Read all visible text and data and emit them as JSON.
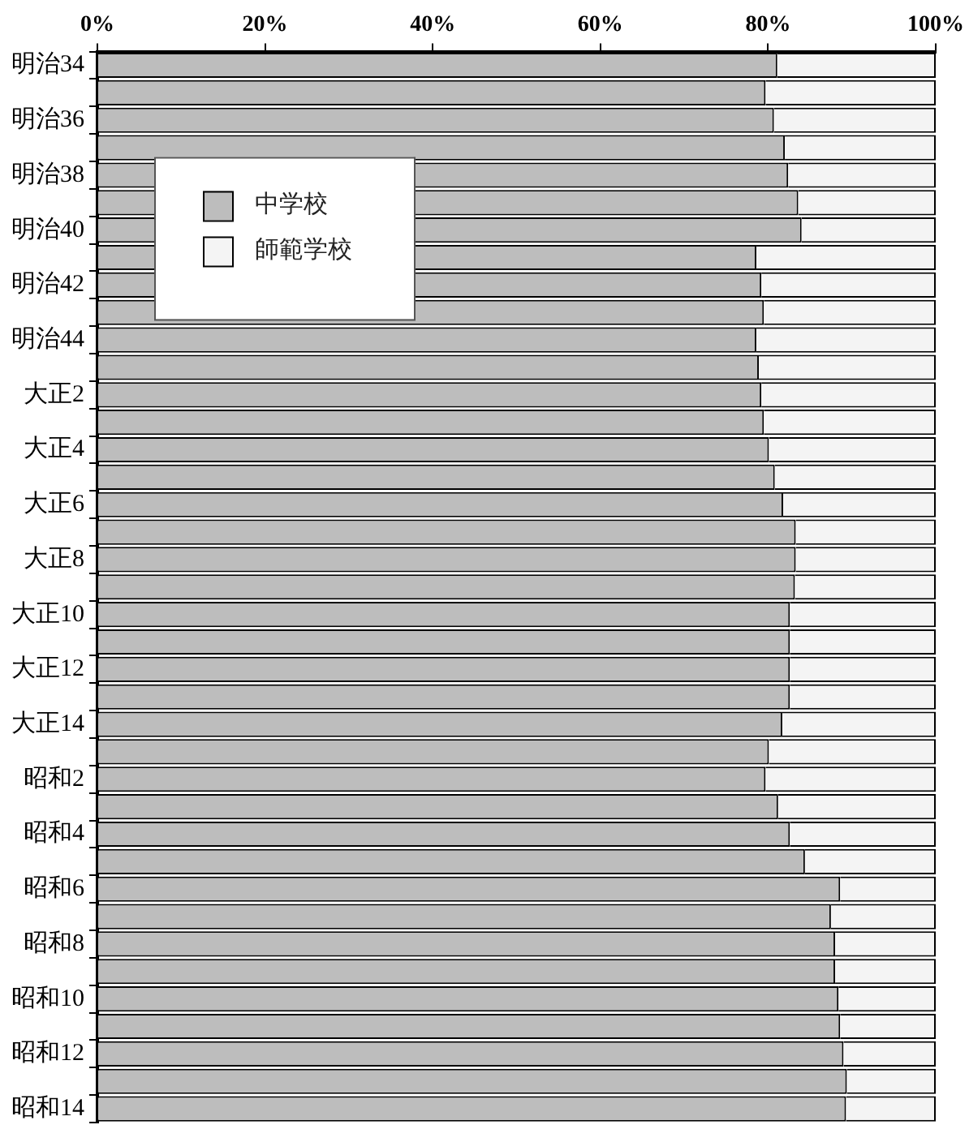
{
  "chart_data": {
    "type": "bar",
    "orientation": "horizontal",
    "stacked": true,
    "categories": [
      "明治34",
      null,
      "明治36",
      null,
      "明治38",
      null,
      "明治40",
      null,
      "明治42",
      null,
      "明治44",
      null,
      "大正2",
      null,
      "大正4",
      null,
      "大正6",
      null,
      "大正8",
      null,
      "大正10",
      null,
      "大正12",
      null,
      "大正14",
      null,
      "昭和2",
      null,
      "昭和4",
      null,
      "昭和6",
      null,
      "昭和8",
      null,
      "昭和10",
      null,
      "昭和12",
      null,
      "昭和14"
    ],
    "series": [
      {
        "name": "中学校",
        "color": "#bdbdbd",
        "values": [
          81.1,
          79.7,
          80.7,
          82.0,
          82.4,
          83.6,
          84.0,
          78.6,
          79.2,
          79.5,
          78.6,
          78.9,
          79.2,
          79.5,
          80.1,
          80.8,
          81.8,
          83.3,
          83.3,
          83.2,
          82.6,
          82.6,
          82.6,
          82.6,
          81.7,
          80.1,
          79.7,
          81.2,
          82.6,
          84.4,
          88.6,
          87.5,
          88.0,
          88.0,
          88.4,
          88.6,
          89.0,
          89.4,
          89.3
        ]
      },
      {
        "name": "師範学校",
        "color": "#f4f4f4",
        "values": [
          18.9,
          20.3,
          19.3,
          18.0,
          17.6,
          16.4,
          16.0,
          21.4,
          20.8,
          20.5,
          21.4,
          21.1,
          20.8,
          20.5,
          19.9,
          19.2,
          18.2,
          16.7,
          16.7,
          16.8,
          17.4,
          17.4,
          17.4,
          17.4,
          18.3,
          19.9,
          20.3,
          18.8,
          17.4,
          15.6,
          11.4,
          12.5,
          12.0,
          12.0,
          11.6,
          11.4,
          11.0,
          10.6,
          10.7
        ]
      }
    ],
    "xlim": [
      0,
      100
    ],
    "xticks": [
      {
        "value": 0,
        "label": "0%"
      },
      {
        "value": 20,
        "label": "20%"
      },
      {
        "value": 40,
        "label": "40%"
      },
      {
        "value": 60,
        "label": "60%"
      },
      {
        "value": 80,
        "label": "80%"
      },
      {
        "value": 100,
        "label": "100%"
      }
    ],
    "grid": false,
    "legend": "top left"
  }
}
